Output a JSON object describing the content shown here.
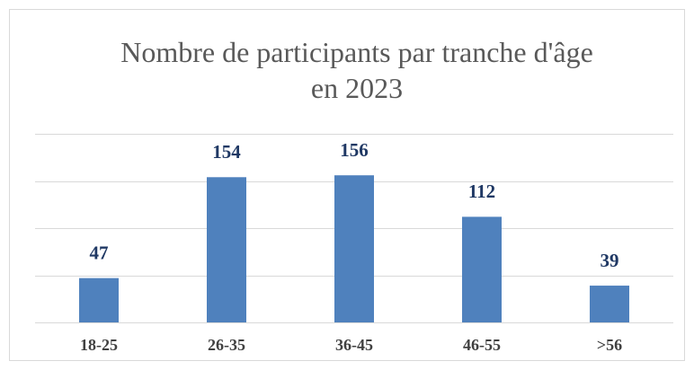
{
  "chart_data": {
    "type": "bar",
    "title": "Nombre de participants par tranche d'âge en 2023",
    "categories": [
      "18-25",
      "26-35",
      "36-45",
      "46-55",
      ">56"
    ],
    "values": [
      47,
      154,
      156,
      112,
      39
    ],
    "color": "#4f81bd",
    "ylim": [
      0,
      200
    ],
    "yticks": [
      0,
      50,
      100,
      150,
      200
    ],
    "grid": true
  }
}
